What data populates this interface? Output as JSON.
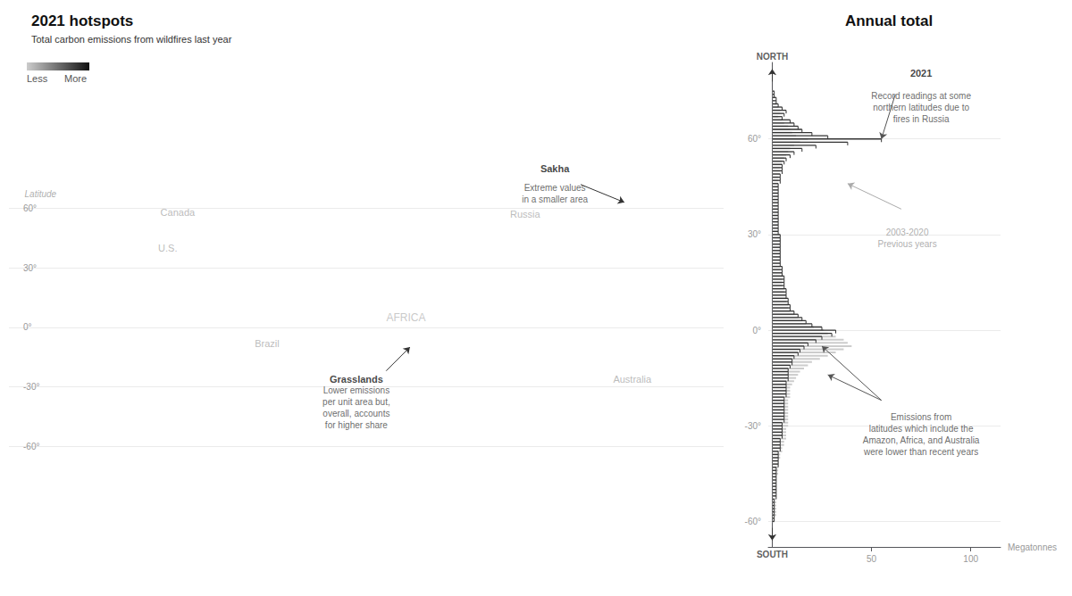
{
  "chart_data": [
    {
      "type": "map",
      "title": "2021 hotspots",
      "subtitle": "Total carbon emissions from wildfires last year",
      "xlim": [
        -180,
        180
      ],
      "ylim": [
        -68,
        84
      ],
      "yticks": [
        {
          "value": 60,
          "label": "60°"
        },
        {
          "value": 30,
          "label": "30°"
        },
        {
          "value": 0,
          "label": "0°"
        },
        {
          "value": -30,
          "label": "-30°"
        },
        {
          "value": -60,
          "label": "-60°"
        }
      ],
      "tick_labels": "y",
      "grid": true,
      "annotations": [
        "Latitude",
        "Less",
        "More",
        "Canada",
        "U.S.",
        "Brazil",
        "AFRICA",
        "Russia",
        "Australia",
        "Sakha",
        "Extreme values\nin a smaller area",
        "Grasslands",
        "Lower emissions\nper unit area but,\noverall, accounts\nfor higher share"
      ]
    },
    {
      "type": "bar",
      "orientation": "horizontal",
      "title": "Annual total",
      "xlabel": "Megatonnes",
      "xlim": [
        -2,
        115
      ],
      "xticks": [
        50,
        100
      ],
      "ylim": [
        -68,
        84
      ],
      "yticks": [
        {
          "value": 60,
          "label": "60°"
        },
        {
          "value": 30,
          "label": "30°"
        },
        {
          "value": 0,
          "label": "0°"
        },
        {
          "value": -30,
          "label": "-30°"
        },
        {
          "value": -60,
          "label": "-60°"
        }
      ],
      "grid": true,
      "y": [
        75,
        74,
        73,
        72,
        71,
        70,
        69,
        68,
        67,
        66,
        65,
        64,
        63,
        62,
        61,
        60,
        59,
        58,
        57,
        56,
        55,
        54,
        53,
        52,
        51,
        50,
        49,
        48,
        47,
        46,
        45,
        44,
        43,
        42,
        41,
        40,
        39,
        38,
        37,
        36,
        35,
        34,
        33,
        32,
        31,
        30,
        29,
        28,
        27,
        26,
        25,
        24,
        23,
        22,
        21,
        20,
        19,
        18,
        17,
        16,
        15,
        14,
        13,
        12,
        11,
        10,
        9,
        8,
        7,
        6,
        5,
        4,
        3,
        2,
        1,
        0,
        -1,
        -2,
        -3,
        -4,
        -5,
        -6,
        -7,
        -8,
        -9,
        -10,
        -11,
        -12,
        -13,
        -14,
        -15,
        -16,
        -17,
        -18,
        -19,
        -20,
        -21,
        -22,
        -23,
        -24,
        -25,
        -26,
        -27,
        -28,
        -29,
        -30,
        -31,
        -32,
        -33,
        -34,
        -35,
        -36,
        -37,
        -38,
        -39,
        -40,
        -41,
        -42,
        -43,
        -44,
        -45,
        -46,
        -47,
        -48,
        -49,
        -50,
        -51,
        -52,
        -53,
        -54,
        -55,
        -56,
        -57,
        -58,
        -59,
        -60
      ],
      "series": [
        {
          "color": "#cccccc",
          "values": [
            1,
            1,
            1,
            1,
            2,
            3,
            4,
            4,
            3,
            5,
            6,
            8,
            9,
            10,
            12,
            18,
            14,
            11,
            9,
            8,
            7,
            6,
            5,
            5,
            4,
            4,
            4,
            3,
            3,
            3,
            3,
            3,
            3,
            3,
            3,
            3,
            3,
            3,
            3,
            3,
            3,
            3,
            3,
            3,
            3,
            4,
            4,
            4,
            4,
            4,
            4,
            4,
            4,
            4,
            4,
            4,
            4,
            5,
            5,
            5,
            5,
            5,
            6,
            6,
            7,
            7,
            7,
            8,
            8,
            9,
            11,
            13,
            15,
            17,
            21,
            26,
            28,
            32,
            36,
            38,
            40,
            36,
            32,
            28,
            24,
            20,
            18,
            16,
            14,
            13,
            12,
            11,
            10,
            9,
            9,
            9,
            9,
            8,
            8,
            8,
            8,
            8,
            8,
            8,
            8,
            8,
            7,
            7,
            7,
            7,
            6,
            6,
            5,
            5,
            4,
            4,
            3,
            3,
            3,
            3,
            3,
            2,
            2,
            2,
            2,
            2,
            2,
            2,
            2,
            2,
            2,
            2,
            2,
            2,
            1,
            1
          ]
        },
        {
          "color": "#333333",
          "values": [
            1,
            1,
            2,
            2,
            3,
            5,
            7,
            6,
            5,
            9,
            11,
            13,
            15,
            20,
            28,
            55,
            38,
            22,
            15,
            11,
            9,
            7,
            6,
            5,
            5,
            5,
            4,
            4,
            4,
            3,
            3,
            3,
            3,
            3,
            3,
            3,
            3,
            3,
            3,
            3,
            3,
            3,
            3,
            3,
            3,
            4,
            4,
            4,
            4,
            4,
            4,
            4,
            4,
            4,
            4,
            5,
            5,
            5,
            6,
            6,
            6,
            6,
            7,
            7,
            7,
            8,
            8,
            9,
            9,
            11,
            13,
            15,
            17,
            20,
            25,
            32,
            30,
            25,
            22,
            18,
            16,
            14,
            13,
            11,
            10,
            10,
            9,
            8,
            8,
            8,
            8,
            7,
            7,
            7,
            7,
            7,
            6,
            6,
            6,
            6,
            6,
            6,
            6,
            6,
            5,
            5,
            5,
            5,
            5,
            4,
            4,
            4,
            4,
            3,
            3,
            3,
            3,
            3,
            2,
            2,
            2,
            2,
            2,
            2,
            2,
            2,
            2,
            2,
            1,
            1,
            1,
            1,
            1,
            1,
            1,
            1
          ]
        }
      ],
      "annotations": [
        "NORTH",
        "SOUTH",
        "2021",
        "Record readings at some\nnorthern latitudes due to\nfires in Russia",
        "2003-2020\nPrevious years",
        "Emissions from\nlatitudes which include the\nAmazon, Africa, and Australia\nwere lower than recent years"
      ]
    }
  ]
}
